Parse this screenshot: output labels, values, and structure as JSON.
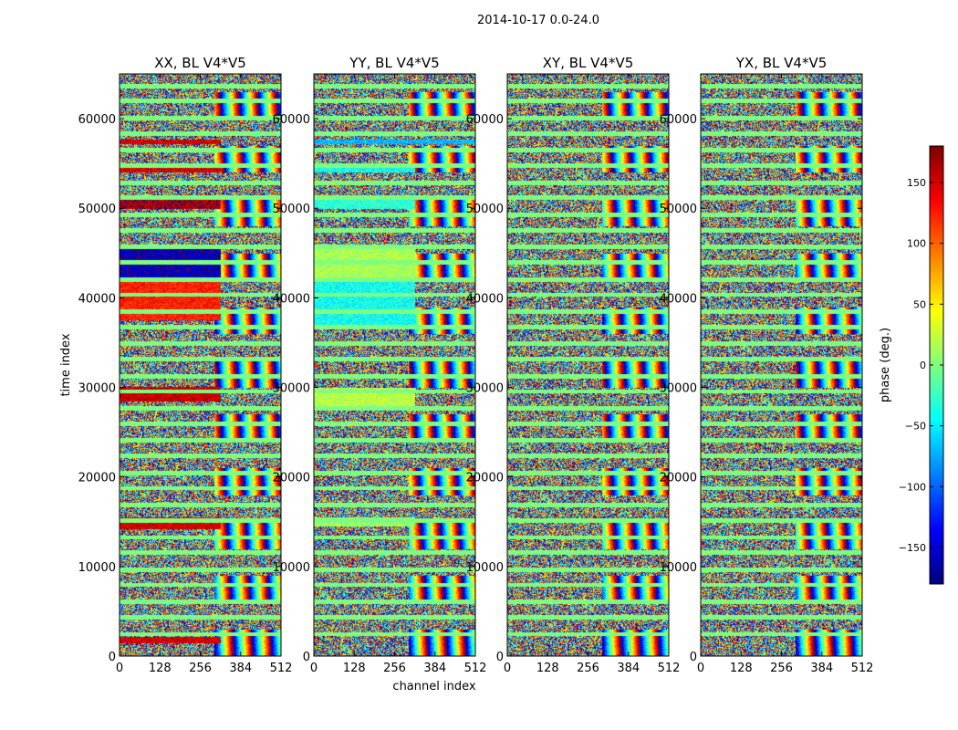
{
  "figure": {
    "suptitle": "2014-10-17 0.0-24.0"
  },
  "chart_data": {
    "type": "heatmap",
    "layout": "4 side-by-side panels sharing y-axis ticks and a common colorbar on the right",
    "xlabel": "channel index",
    "ylabel": "time index",
    "xlim": [
      0,
      512
    ],
    "ylim": [
      0,
      65000
    ],
    "x_ticks": [
      0,
      128,
      256,
      384,
      512
    ],
    "y_ticks": [
      0,
      10000,
      20000,
      30000,
      40000,
      50000,
      60000
    ],
    "colormap": "jet",
    "colorbar": {
      "label": "phase (deg.)",
      "range": [
        -180,
        180
      ],
      "ticks": [
        -150,
        -100,
        -50,
        0,
        50,
        100,
        150
      ],
      "tick_labels": [
        "−150",
        "−100",
        "−50",
        "0",
        "50",
        "100",
        "150"
      ],
      "position": "right"
    },
    "panels": [
      {
        "title": "XX, BL V4*V5",
        "coherent_bands": [
          {
            "t_start": 1500,
            "t_end": 2200,
            "ch_start": 0,
            "ch_end": 320,
            "phase": 150
          },
          {
            "t_start": 14200,
            "t_end": 15500,
            "ch_start": 0,
            "ch_end": 320,
            "phase": 150
          },
          {
            "t_start": 28500,
            "t_end": 30100,
            "ch_start": 0,
            "ch_end": 320,
            "phase": 155
          },
          {
            "t_start": 37500,
            "t_end": 42000,
            "ch_start": 0,
            "ch_end": 320,
            "phase": 125
          },
          {
            "t_start": 42000,
            "t_end": 46000,
            "ch_start": 0,
            "ch_end": 320,
            "phase": -160
          },
          {
            "t_start": 50000,
            "t_end": 51000,
            "ch_start": 0,
            "ch_end": 320,
            "phase": 165
          },
          {
            "t_start": 54000,
            "t_end": 54600,
            "ch_start": 0,
            "ch_end": 320,
            "phase": 150
          },
          {
            "t_start": 57200,
            "t_end": 57700,
            "ch_start": 0,
            "ch_end": 320,
            "phase": 150
          }
        ]
      },
      {
        "title": "YY, BL V4*V5",
        "coherent_bands": [
          {
            "t_start": 14500,
            "t_end": 15500,
            "ch_start": 0,
            "ch_end": 320,
            "phase": 10
          },
          {
            "t_start": 28000,
            "t_end": 30000,
            "ch_start": 0,
            "ch_end": 320,
            "phase": 20
          },
          {
            "t_start": 37000,
            "t_end": 42000,
            "ch_start": 0,
            "ch_end": 320,
            "phase": -40
          },
          {
            "t_start": 42000,
            "t_end": 46000,
            "ch_start": 0,
            "ch_end": 320,
            "phase": 15
          },
          {
            "t_start": 50000,
            "t_end": 51000,
            "ch_start": 0,
            "ch_end": 320,
            "phase": -30
          },
          {
            "t_start": 54000,
            "t_end": 54600,
            "ch_start": 0,
            "ch_end": 320,
            "phase": -40
          },
          {
            "t_start": 57200,
            "t_end": 57700,
            "ch_start": 0,
            "ch_end": 512,
            "phase": -70
          }
        ]
      },
      {
        "title": "XY, BL V4*V5",
        "coherent_bands": []
      },
      {
        "title": "YX, BL V4*V5",
        "coherent_bands": []
      }
    ],
    "flagged_rows_phase": 0,
    "noise_fill": "random phase in [-180, 180]"
  }
}
